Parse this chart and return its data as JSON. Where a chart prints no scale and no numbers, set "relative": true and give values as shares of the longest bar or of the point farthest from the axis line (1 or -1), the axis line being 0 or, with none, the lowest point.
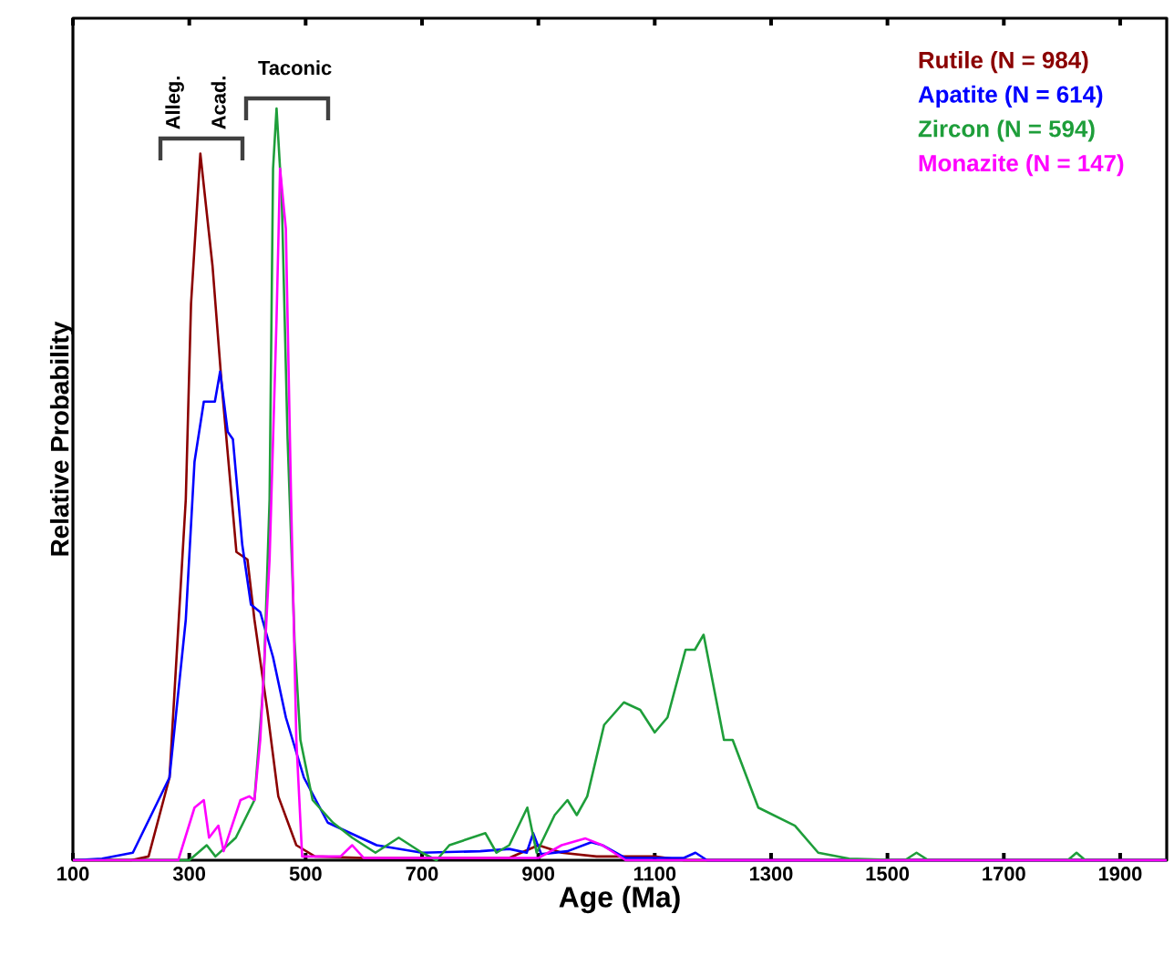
{
  "chart_data": {
    "type": "line",
    "relative": true,
    "xlabel": "Age (Ma)",
    "ylabel": "Relative Probability",
    "xlim": [
      100,
      1980
    ],
    "xticks": [
      100,
      300,
      500,
      700,
      900,
      1100,
      1300,
      1500,
      1700,
      1900
    ],
    "legend": "top right",
    "annotations": [
      "Alleg.",
      "Acad.",
      "Taconic"
    ],
    "series": [
      {
        "name": "Rutile (N = 984)",
        "color": "#8b0000",
        "x": [
          100,
          200,
          230,
          266,
          294,
          303,
          319,
          340,
          356,
          381,
          400,
          412,
          434,
          453,
          484,
          516,
          600,
          850,
          900,
          940,
          1000,
          1100,
          1150,
          1980
        ],
        "values": [
          0,
          0,
          0.005,
          0.11,
          0.48,
          0.74,
          0.94,
          0.79,
          0.63,
          0.41,
          0.4,
          0.32,
          0.2,
          0.085,
          0.02,
          0.005,
          0.003,
          0.003,
          0.02,
          0.01,
          0.005,
          0.005,
          0,
          0
        ]
      },
      {
        "name": "Apatite (N = 614)",
        "color": "#0000ff",
        "x": [
          100,
          150,
          203,
          266,
          294,
          309,
          325,
          344,
          353,
          366,
          375,
          391,
          406,
          422,
          444,
          466,
          497,
          538,
          622,
          700,
          800,
          850,
          880,
          891,
          905,
          950,
          991,
          1010,
          1050,
          1150,
          1170,
          1190,
          1980
        ],
        "values": [
          0,
          0.002,
          0.01,
          0.11,
          0.32,
          0.53,
          0.61,
          0.61,
          0.65,
          0.57,
          0.56,
          0.42,
          0.34,
          0.33,
          0.27,
          0.19,
          0.11,
          0.05,
          0.02,
          0.01,
          0.012,
          0.015,
          0.01,
          0.036,
          0.008,
          0.012,
          0.024,
          0.02,
          0.003,
          0.003,
          0.01,
          0,
          0
        ]
      },
      {
        "name": "Zircon (N = 594)",
        "color": "#1e9e3a",
        "x": [
          100,
          300,
          330,
          345,
          380,
          412,
          428,
          438,
          444,
          450,
          459,
          469,
          478,
          481,
          491,
          512,
          547,
          580,
          620,
          660,
          700,
          725,
          747,
          809,
          828,
          850,
          881,
          897,
          928,
          950,
          966,
          984,
          1013,
          1047,
          1075,
          1100,
          1122,
          1153,
          1169,
          1184,
          1219,
          1234,
          1278,
          1341,
          1381,
          1434,
          1530,
          1550,
          1570,
          1810,
          1825,
          1840,
          1980
        ],
        "values": [
          0,
          0,
          0.02,
          0.005,
          0.03,
          0.08,
          0.24,
          0.48,
          0.92,
          1.0,
          0.88,
          0.56,
          0.36,
          0.29,
          0.16,
          0.08,
          0.05,
          0.03,
          0.01,
          0.03,
          0.01,
          0,
          0.02,
          0.036,
          0.01,
          0.02,
          0.07,
          0.01,
          0.06,
          0.08,
          0.06,
          0.085,
          0.18,
          0.21,
          0.2,
          0.17,
          0.19,
          0.28,
          0.28,
          0.3,
          0.16,
          0.16,
          0.07,
          0.046,
          0.01,
          0.002,
          0,
          0.01,
          0,
          0,
          0.01,
          0,
          0
        ]
      },
      {
        "name": "Monazite (N = 147)",
        "color": "#ff00ff",
        "x": [
          100,
          281,
          309,
          325,
          334,
          350,
          359,
          388,
          403,
          412,
          422,
          438,
          450,
          456,
          466,
          475,
          484,
          494,
          560,
          580,
          600,
          900,
          940,
          981,
          1010,
          1050,
          1980
        ],
        "values": [
          0,
          0,
          0.07,
          0.08,
          0.03,
          0.046,
          0.012,
          0.08,
          0.085,
          0.08,
          0.16,
          0.4,
          0.72,
          0.92,
          0.84,
          0.48,
          0.16,
          0.005,
          0.005,
          0.02,
          0.003,
          0.003,
          0.02,
          0.029,
          0.02,
          0,
          0
        ]
      }
    ]
  }
}
